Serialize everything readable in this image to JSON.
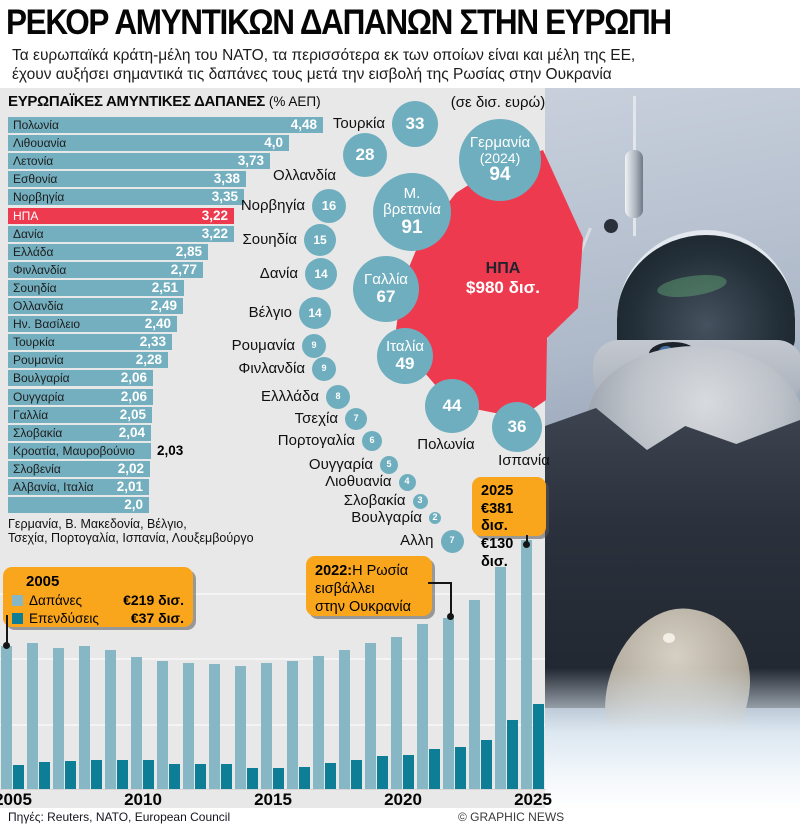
{
  "header": {
    "title": "ΡΕΚΟΡ ΑΜΥΝΤΙΚΩΝ ΔΑΠΑΝΩΝ ΣΤΗΝ ΕΥΡΩΠΗ",
    "subtitle_line1": "Τα ευρωπαϊκά κράτη-μέλη του ΝΑΤΟ, τα περισσότερα εκ των οποίων είναι και μέλη της ΕΕ,",
    "subtitle_line2": "έχουν αυξήσει σημαντικά τις δαπάνες τους μετά την εισβολή της Ρωσίας στην Ουκρανία"
  },
  "colors": {
    "bar_blue": "#74afbf",
    "bubble_blue": "#6faebf",
    "timeline_blue": "#87b6c4",
    "teal": "#0d7e96",
    "highlight_red": "#ee3a4f",
    "callout_orange": "#f9a61c",
    "panel_gray": "#e8e8e8"
  },
  "chart_data": [
    {
      "id": "gdp",
      "type": "bar",
      "orientation": "horizontal",
      "title": "ΕΥΡΩΠΑΪΚΕΣ ΑΜΥΝΤΙΚΕΣ ΔΑΠΑΝΕΣ",
      "unit": "(% ΑΕΠ)",
      "xlim": [
        0,
        4.48
      ],
      "categories": [
        "Πολωνία",
        "Λιθουανία",
        "Λετονία",
        "Εσθονία",
        "Νορβηγία",
        "ΗΠΑ",
        "Δανία",
        "Ελλάδα",
        "Φινλανδία",
        "Σουηδία",
        "Ολλανδία",
        "Ην. Βασίλειο",
        "Τουρκία",
        "Ρουμανία",
        "Βουλγαρία",
        "Ουγγαρία",
        "Γαλλία",
        "Σλοβακία",
        "Κροατία, Μαυροβούνιο",
        "Σλοβενία",
        "Αλβανία, Ιταλία",
        ""
      ],
      "values": [
        4.48,
        4.0,
        3.73,
        3.38,
        3.35,
        3.22,
        3.22,
        2.85,
        2.77,
        2.51,
        2.49,
        2.4,
        2.33,
        2.28,
        2.06,
        2.06,
        2.05,
        2.04,
        2.03,
        2.02,
        2.01,
        2.0
      ],
      "value_labels": [
        "4,48",
        "4,0",
        "3,73",
        "3,38",
        "3,35",
        "3,22",
        "3,22",
        "2,85",
        "2,77",
        "2,51",
        "2,49",
        "2,40",
        "2,33",
        "2,28",
        "2,06",
        "2,06",
        "2,05",
        "2,04",
        "2,03",
        "2,02",
        "2,01",
        "2,0"
      ],
      "highlight_index": 5,
      "outside_value_index": 18,
      "footnote_line1": "Γερμανία, Β. Μακεδονία, Βέλγιο,",
      "footnote_line2": "Τσεχία, Πορτογαλία, Ισπανία, Λουξεμβούργο"
    },
    {
      "id": "budgets",
      "type": "bubble",
      "unit_label": "(σε δισ. ευρώ)",
      "usa": {
        "label": "ΗΠΑ",
        "value_label": "$980 δισ."
      },
      "points": [
        {
          "label": "Τουρκία",
          "value": 33,
          "x": 415,
          "y": 36,
          "r": 23,
          "side": "left"
        },
        {
          "label": "Ολλανδία",
          "value": 28,
          "x": 365,
          "y": 67,
          "r": 22,
          "side": "left",
          "ldy": 21
        },
        {
          "label": "Γερμανία",
          "sublabel": "(2024)",
          "value": 94,
          "x": 500,
          "y": 72,
          "r": 41,
          "side": "in"
        },
        {
          "label": "Μ. βρετανία",
          "value": 91,
          "x": 412,
          "y": 124,
          "r": 39,
          "side": "in"
        },
        {
          "label": "Νορβηγία",
          "value": 16,
          "x": 329,
          "y": 118,
          "r": 17,
          "side": "left"
        },
        {
          "label": "Σουηδία",
          "value": 15,
          "x": 320,
          "y": 152,
          "r": 16,
          "side": "left"
        },
        {
          "label": "Δανία",
          "value": 14,
          "x": 321,
          "y": 186,
          "r": 16,
          "side": "left"
        },
        {
          "label": "Γαλλία",
          "value": 67,
          "x": 386,
          "y": 201,
          "r": 33,
          "side": "in"
        },
        {
          "label": "Βέλγιο",
          "value": 14,
          "x": 315,
          "y": 225,
          "r": 16,
          "side": "left"
        },
        {
          "label": "Ρουμανία",
          "value": 9,
          "x": 314,
          "y": 258,
          "r": 12,
          "side": "left"
        },
        {
          "label": "Ιταλία",
          "value": 49,
          "x": 405,
          "y": 268,
          "r": 28,
          "side": "in"
        },
        {
          "label": "Φινλανδία",
          "value": 9,
          "x": 324,
          "y": 281,
          "r": 12,
          "side": "left"
        },
        {
          "label": "Ελλλάδα",
          "value": 8,
          "x": 338,
          "y": 309,
          "r": 12,
          "side": "left"
        },
        {
          "label": "Τσεχία",
          "value": 7,
          "x": 356,
          "y": 331,
          "r": 11,
          "side": "left"
        },
        {
          "label": "Πολωνία",
          "value": 44,
          "x": 452,
          "y": 318,
          "r": 27,
          "side": "below",
          "lx": 446,
          "ly": 357
        },
        {
          "label": "Ισπανία",
          "value": 36,
          "x": 517,
          "y": 339,
          "r": 25,
          "side": "below",
          "lx": 524,
          "ly": 373
        },
        {
          "label": "Πορτογαλία",
          "value": 6,
          "x": 372,
          "y": 353,
          "r": 10,
          "side": "left"
        },
        {
          "label": "Ουγγαρία",
          "value": 5,
          "x": 389,
          "y": 377,
          "r": 9,
          "side": "left"
        },
        {
          "label": "Λιοθυανία",
          "value": 4,
          "x": 407,
          "y": 394,
          "r": 8.5,
          "side": "left"
        },
        {
          "label": "Σλοβακία",
          "value": 3,
          "x": 420,
          "y": 413,
          "r": 7.5,
          "side": "left"
        },
        {
          "label": "Βουλγαρία",
          "value": 2,
          "x": 435,
          "y": 430,
          "r": 6,
          "side": "left"
        },
        {
          "label": "Αλλη",
          "value": 7,
          "x": 452,
          "y": 453,
          "r": 11.5,
          "side": "left"
        }
      ]
    },
    {
      "id": "timeline",
      "type": "bar",
      "categories": [
        2005,
        2006,
        2007,
        2008,
        2009,
        2010,
        2011,
        2012,
        2013,
        2014,
        2015,
        2016,
        2017,
        2018,
        2019,
        2020,
        2021,
        2022,
        2023,
        2024,
        2025
      ],
      "series": [
        {
          "name": "Δαπάνες",
          "values": [
            219,
            224,
            216,
            219,
            213,
            202,
            196,
            193,
            191,
            189,
            193,
            196,
            204,
            213,
            224,
            233,
            253,
            262,
            290,
            340,
            381
          ]
        },
        {
          "name": "Επενδύσεις",
          "values": [
            37,
            42,
            43,
            44,
            44,
            44,
            38,
            39,
            38,
            32,
            32,
            34,
            40,
            44,
            50,
            52,
            61,
            65,
            75,
            105,
            130
          ]
        }
      ],
      "unit": "€ δισ.",
      "ylim": [
        0,
        400
      ],
      "gridlines": [
        100,
        200,
        300
      ],
      "xticks": [
        "2005",
        "2010",
        "2015",
        "2020",
        "2025"
      ]
    }
  ],
  "callouts": {
    "y2005": {
      "year": "2005",
      "rows": [
        {
          "label": "Δαπάνες",
          "value": "€219 δισ."
        },
        {
          "label": "Επενδύσεις",
          "value": "€37 δισ."
        }
      ]
    },
    "y2022": {
      "prefix": "2022:",
      "line1": "Η Ρωσία",
      "line2": "εισβάλλει",
      "line3": "στην Ουκρανία"
    },
    "y2025": {
      "year": "2025",
      "line1": "€381 δισ.",
      "line2": "€130 δισ."
    }
  },
  "footer": {
    "sources": "Πηγές: Reuters, NATO, European Council",
    "credit": "© GRAPHIC NEWS"
  }
}
